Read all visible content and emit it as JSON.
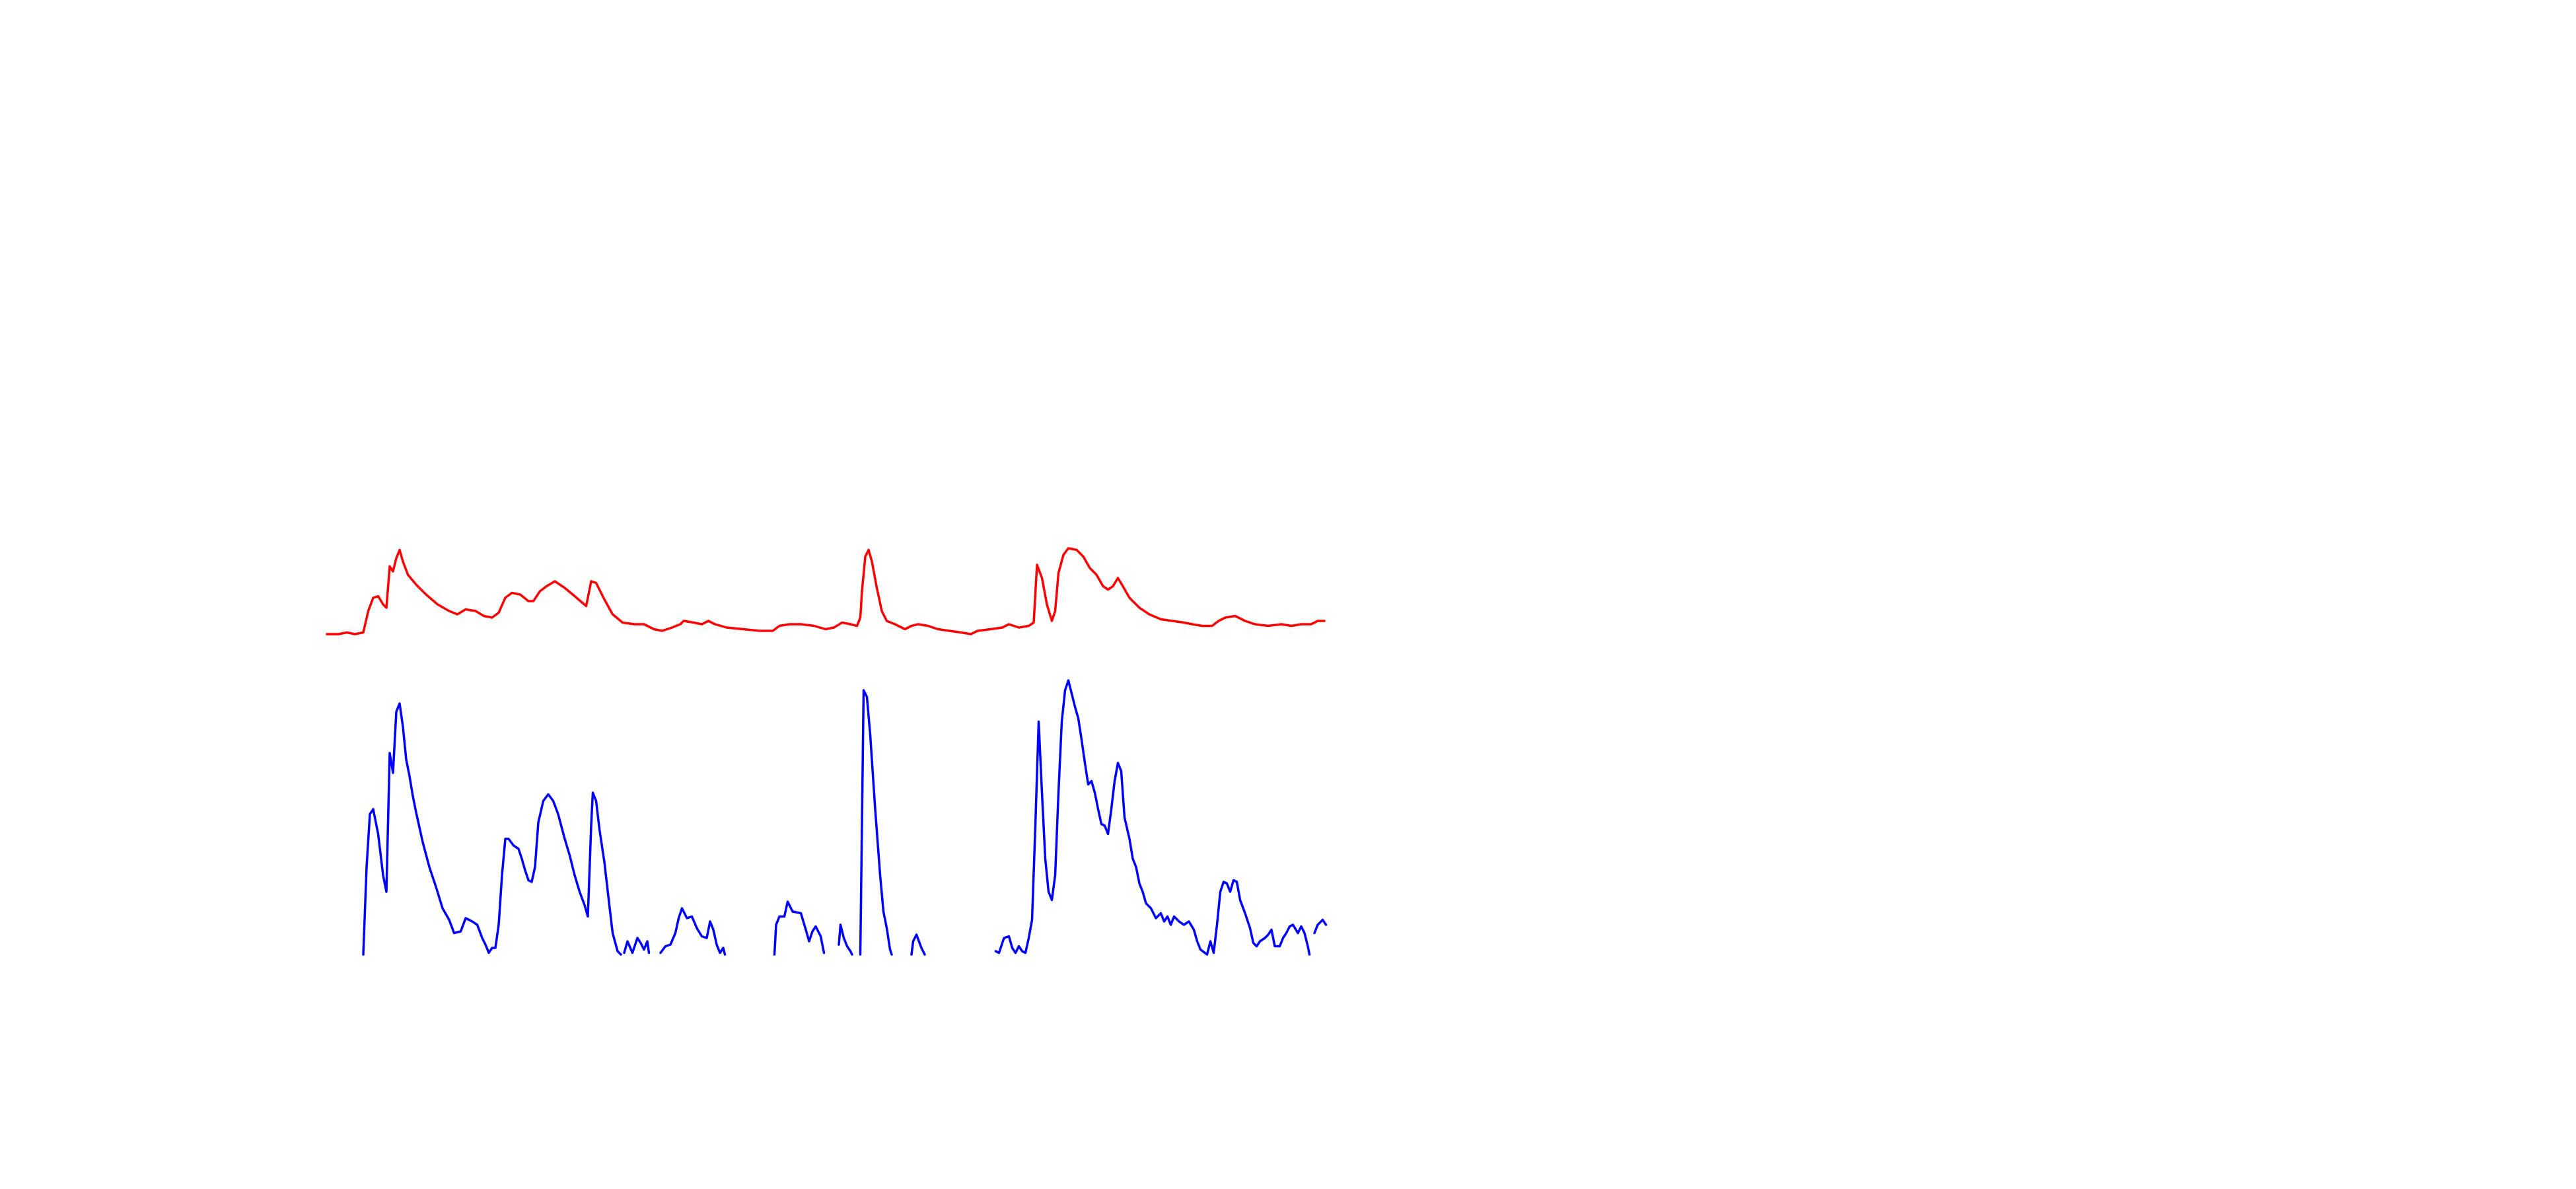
{
  "chart_data": {
    "type": "line",
    "xlim": [
      0,
      1560
    ],
    "ylim": [
      0,
      720
    ],
    "series": [
      {
        "color": "#ff0000",
        "x": [
          198,
          205,
          210,
          215,
          220,
          223,
          226,
          229,
          232,
          234,
          236,
          238,
          240,
          242,
          244,
          247,
          252,
          258,
          265,
          272,
          277,
          282,
          288,
          293,
          298,
          302,
          306,
          310,
          315,
          320,
          323,
          327,
          331,
          336,
          342,
          348,
          355,
          358,
          361,
          366,
          371,
          377,
          384,
          390,
          396,
          401,
          407,
          412,
          414,
          420,
          425,
          429,
          433,
          440,
          450,
          460,
          468,
          472,
          478,
          485,
          493,
          500,
          505,
          510,
          515,
          519,
          521,
          522,
          524,
          526,
          528,
          531,
          534,
          537,
          542,
          548,
          552,
          556,
          562,
          568,
          575,
          582,
          588,
          592,
          600,
          607,
          611,
          617,
          623,
          626,
          628,
          631,
          634,
          637,
          639,
          641,
          644,
          647,
          652,
          656,
          660,
          664,
          668,
          671,
          674,
          677,
          680,
          684,
          690,
          696,
          703,
          710,
          717,
          722,
          728,
          734,
          738,
          742,
          748,
          754,
          760,
          768,
          776,
          782,
          788,
          794,
          798,
          802
        ],
        "values": [
          336,
          336,
          337,
          336,
          337,
          350,
          358,
          359,
          354,
          352,
          377,
          374,
          382,
          387,
          380,
          372,
          366,
          360,
          354,
          350,
          348,
          351,
          350,
          347,
          346,
          349,
          358,
          361,
          360,
          356,
          356,
          362,
          365,
          368,
          364,
          359,
          353,
          368,
          367,
          357,
          348,
          343,
          342,
          342,
          339,
          338,
          340,
          342,
          344,
          343,
          342,
          344,
          342,
          340,
          339,
          338,
          338,
          341,
          342,
          342,
          341,
          339,
          340,
          343,
          342,
          341,
          346,
          362,
          383,
          387,
          380,
          364,
          350,
          344,
          342,
          339,
          341,
          342,
          341,
          339,
          338,
          337,
          336,
          338,
          339,
          340,
          342,
          340,
          341,
          343,
          378,
          370,
          354,
          344,
          350,
          373,
          384,
          388,
          387,
          383,
          376,
          372,
          365,
          363,
          365,
          370,
          365,
          358,
          352,
          348,
          345,
          344,
          343,
          342,
          341,
          341,
          344,
          346,
          347,
          344,
          342,
          341,
          342,
          341,
          342,
          342,
          344,
          344
        ]
      },
      {
        "color": "#0000ff",
        "x": [
          220,
          222,
          224,
          226,
          229,
          232,
          234,
          236,
          238,
          240,
          242,
          244,
          246,
          248,
          250,
          252,
          256,
          260,
          264,
          268,
          272,
          275,
          279,
          282,
          286,
          289,
          292,
          294,
          296,
          298,
          300,
          302,
          304,
          306,
          308,
          311,
          314,
          316,
          318,
          320,
          322,
          324,
          326,
          329,
          332,
          335,
          338,
          342,
          345,
          348,
          351,
          354,
          356,
          358,
          359,
          361,
          363,
          366,
          369,
          371,
          374,
          376,
          377,
          378,
          380,
          383,
          386,
          388,
          390,
          392,
          393,
          396,
          400,
          403,
          406,
          409,
          411,
          413,
          416,
          419,
          422,
          425,
          428,
          430,
          432,
          434,
          436,
          438,
          439,
          454,
          469,
          470,
          472,
          475,
          477,
          480,
          485,
          488,
          490,
          492,
          494,
          497,
          499,
          503,
          508,
          509,
          511,
          513,
          515,
          516,
          518,
          521,
          523,
          525,
          527,
          530,
          533,
          535,
          537,
          539,
          540,
          546,
          552,
          553,
          555,
          558,
          560,
          580,
          603,
          605,
          608,
          611,
          613,
          615,
          617,
          619,
          621,
          623,
          625,
          627,
          629,
          631,
          633,
          635,
          637,
          639,
          641,
          643,
          645,
          647,
          649,
          651,
          653,
          655,
          657,
          659,
          661,
          663,
          665,
          667,
          669,
          671,
          673,
          675,
          677,
          679,
          681,
          684,
          686,
          688,
          690,
          692,
          694,
          697,
          700,
          703,
          705,
          707,
          709,
          711,
          714,
          717,
          720,
          723,
          725,
          727,
          731,
          733,
          735,
          737,
          739,
          741,
          743,
          745,
          747,
          749,
          751,
          754,
          757,
          759,
          761,
          763,
          766,
          768,
          770,
          772,
          775,
          777,
          779,
          781,
          783,
          786,
          788,
          790,
          792,
          793,
          795,
          796,
          798,
          801,
          803
        ],
        "values": [
          142,
          195,
          227,
          230,
          215,
          190,
          180,
          264,
          252,
          289,
          294,
          280,
          260,
          250,
          238,
          228,
          210,
          195,
          183,
          170,
          163,
          155,
          156,
          164,
          162,
          160,
          152,
          148,
          143,
          146,
          146,
          160,
          190,
          212,
          212,
          208,
          206,
          200,
          193,
          187,
          186,
          195,
          222,
          235,
          239,
          235,
          227,
          212,
          202,
          190,
          180,
          172,
          165,
          220,
          240,
          235,
          218,
          198,
          172,
          155,
          144,
          142,
          null,
          143,
          150,
          143,
          152,
          149,
          145,
          150,
          143,
          null,
          143,
          147,
          148,
          155,
          164,
          170,
          164,
          165,
          158,
          153,
          152,
          162,
          157,
          148,
          143,
          146,
          142,
          null,
          142,
          160,
          165,
          165,
          174,
          168,
          167,
          157,
          150,
          156,
          159,
          153,
          143,
          null,
          148,
          160,
          152,
          147,
          144,
          142,
          null,
          142,
          302,
          298,
          275,
          230,
          190,
          168,
          158,
          145,
          142,
          null,
          142,
          150,
          154,
          146,
          142,
          null,
          144,
          143,
          152,
          153,
          146,
          143,
          147,
          144,
          143,
          152,
          163,
          220,
          283,
          240,
          200,
          180,
          175,
          190,
          240,
          283,
          302,
          308,
          300,
          292,
          285,
          272,
          258,
          245,
          247,
          240,
          230,
          221,
          220,
          215,
          230,
          247,
          258,
          253,
          225,
          212,
          200,
          195,
          185,
          180,
          173,
          170,
          164,
          167,
          162,
          165,
          160,
          165,
          162,
          160,
          162,
          157,
          150,
          145,
          142,
          150,
          143,
          160,
          180,
          186,
          185,
          180,
          187,
          186,
          175,
          167,
          158,
          149,
          147,
          150,
          152,
          154,
          157,
          147,
          147,
          152,
          155,
          159,
          160,
          155,
          159,
          155,
          147,
          142,
          null,
          155,
          160,
          163,
          160
        ]
      }
    ]
  }
}
